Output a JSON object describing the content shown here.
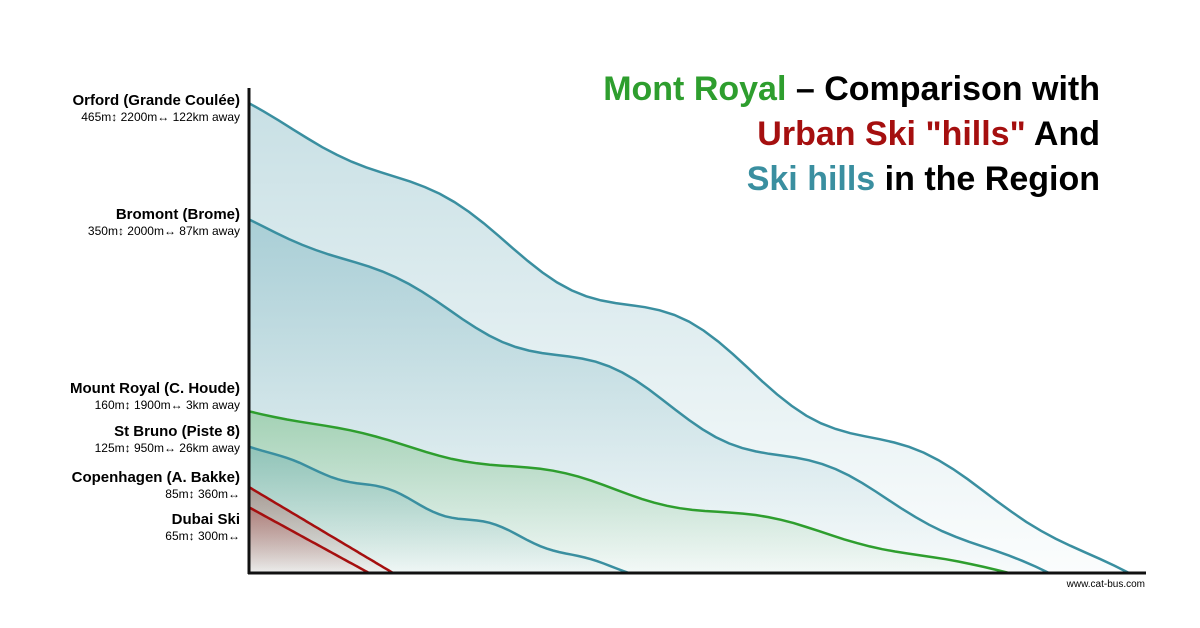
{
  "chart_data": {
    "type": "profile",
    "title": [
      [
        {
          "text": "Mont Royal",
          "color": "#2e9e2e"
        },
        {
          "text": " – Comparison with",
          "color": "#000000"
        }
      ],
      [
        {
          "text": "Urban Ski \"hills\"",
          "color": "#a50f0f"
        },
        {
          "text": " And",
          "color": "#000000"
        }
      ],
      [
        {
          "text": "Ski hills",
          "color": "#3a8fa0"
        },
        {
          "text": " in the Region",
          "color": "#000000"
        }
      ]
    ],
    "xlim": [
      0,
      2240
    ],
    "ylim": [
      0,
      480
    ],
    "series": [
      {
        "name": "Orford (Grande Coulée)",
        "detail": "465m↕  2200m↔ 122km away",
        "color": "#3a8fa0",
        "drop": 465,
        "length": 2200
      },
      {
        "name": "Bromont (Brome)",
        "detail": "350m↕  2000m↔  87km away",
        "color": "#3a8fa0",
        "drop": 350,
        "length": 2000
      },
      {
        "name": "Mount Royal (C. Houde)",
        "detail": "160m↕ 1900m↔ 3km away",
        "color": "#2e9e2e",
        "drop": 160,
        "length": 1900
      },
      {
        "name": "St Bruno (Piste 8)",
        "detail": "125m↕ 950m↔ 26km away",
        "color": "#3a8fa0",
        "drop": 125,
        "length": 950
      },
      {
        "name": "Copenhagen (A. Bakke)",
        "detail": "85m↕ 360m↔",
        "color": "#a50f0f",
        "drop": 85,
        "length": 360
      },
      {
        "name": "Dubai Ski",
        "detail": "65m↕ 300m↔",
        "color": "#a50f0f",
        "drop": 65,
        "length": 300
      }
    ],
    "credit": "www.cat-bus.com"
  }
}
